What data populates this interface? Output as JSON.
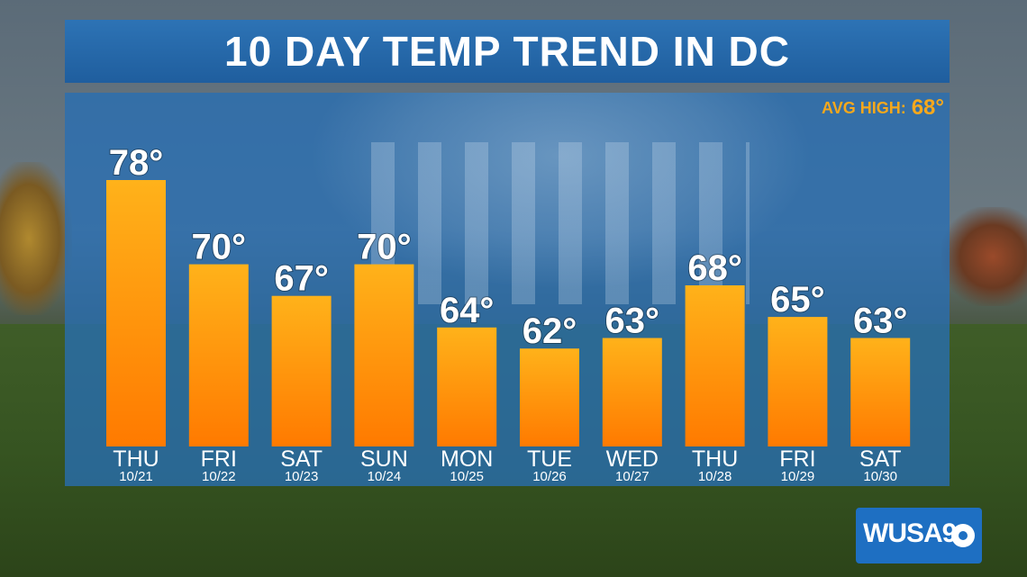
{
  "title": "10 DAY TEMP TREND IN DC",
  "avg_high": {
    "label": "AVG HIGH:",
    "value": "68°"
  },
  "logo": {
    "text": "WUSA9",
    "icon": "cbs-eye-icon"
  },
  "colors": {
    "bar_top": "#ffb21a",
    "bar_bottom": "#ff7a00",
    "panel": "#286eb4",
    "title_band": "#2d73b5",
    "accent": "#f6a81c"
  },
  "chart_data": {
    "type": "bar",
    "title": "10 DAY TEMP TREND IN DC",
    "categories": [
      "THU",
      "FRI",
      "SAT",
      "SUN",
      "MON",
      "TUE",
      "WED",
      "THU",
      "FRI",
      "SAT"
    ],
    "dates": [
      "10/21",
      "10/22",
      "10/23",
      "10/24",
      "10/25",
      "10/26",
      "10/27",
      "10/28",
      "10/29",
      "10/30"
    ],
    "values": [
      78,
      70,
      67,
      70,
      64,
      62,
      63,
      68,
      65,
      63
    ],
    "value_labels": [
      "78°",
      "70°",
      "67°",
      "70°",
      "64°",
      "62°",
      "63°",
      "68°",
      "65°",
      "63°"
    ],
    "ylabel": "",
    "xlabel": "",
    "grid": false
  }
}
